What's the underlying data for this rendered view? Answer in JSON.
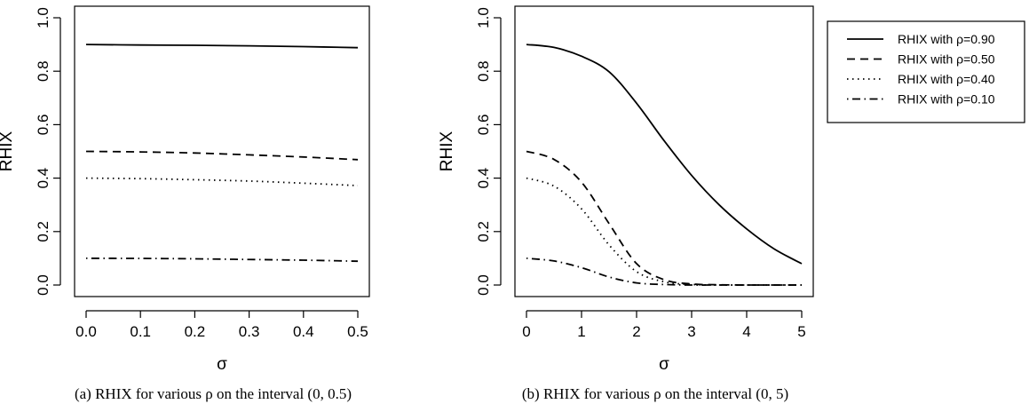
{
  "chart_data": [
    {
      "type": "line",
      "xlabel": "σ",
      "ylabel": "RHIX",
      "xlim": [
        0,
        0.5
      ],
      "ylim": [
        0,
        1
      ],
      "x_ticks": [
        "0.0",
        "0.1",
        "0.2",
        "0.3",
        "0.4",
        "0.5"
      ],
      "y_ticks": [
        "0.0",
        "0.2",
        "0.4",
        "0.6",
        "0.8",
        "1.0"
      ],
      "caption": "(a) RHIX for various ρ on the interval (0, 0.5)",
      "grid": false,
      "series": [
        {
          "name": "RHIX with ρ=0.90",
          "style": "solid",
          "x": [
            0,
            0.1,
            0.2,
            0.3,
            0.4,
            0.5
          ],
          "y": [
            0.9,
            0.898,
            0.897,
            0.895,
            0.892,
            0.888
          ]
        },
        {
          "name": "RHIX with ρ=0.50",
          "style": "dashed",
          "x": [
            0,
            0.1,
            0.2,
            0.3,
            0.4,
            0.5
          ],
          "y": [
            0.5,
            0.498,
            0.494,
            0.487,
            0.479,
            0.469
          ]
        },
        {
          "name": "RHIX with ρ=0.40",
          "style": "dotted",
          "x": [
            0,
            0.1,
            0.2,
            0.3,
            0.4,
            0.5
          ],
          "y": [
            0.4,
            0.398,
            0.394,
            0.389,
            0.381,
            0.372
          ]
        },
        {
          "name": "RHIX with ρ=0.10",
          "style": "dashdot",
          "x": [
            0,
            0.1,
            0.2,
            0.3,
            0.4,
            0.5
          ],
          "y": [
            0.1,
            0.0995,
            0.098,
            0.0955,
            0.093,
            0.089
          ]
        }
      ]
    },
    {
      "type": "line",
      "xlabel": "σ",
      "ylabel": "RHIX",
      "xlim": [
        0,
        5
      ],
      "ylim": [
        0,
        1
      ],
      "x_ticks": [
        "0",
        "1",
        "2",
        "3",
        "4",
        "5"
      ],
      "y_ticks": [
        "0.0",
        "0.2",
        "0.4",
        "0.6",
        "0.8",
        "1.0"
      ],
      "caption": "(b) RHIX for various ρ on the interval (0, 5)",
      "grid": false,
      "legend_position": "outside-right",
      "series": [
        {
          "name": "RHIX with ρ=0.90",
          "style": "solid",
          "x": [
            0,
            0.5,
            1.0,
            1.5,
            2.0,
            2.5,
            3.0,
            3.5,
            4.0,
            4.5,
            5.0
          ],
          "y": [
            0.9,
            0.889,
            0.856,
            0.798,
            0.68,
            0.54,
            0.41,
            0.3,
            0.21,
            0.135,
            0.08
          ]
        },
        {
          "name": "RHIX with ρ=0.50",
          "style": "dashed",
          "x": [
            0,
            0.5,
            1.0,
            1.5,
            2.0,
            2.5,
            3.0,
            3.5,
            4.0,
            4.5,
            5.0
          ],
          "y": [
            0.5,
            0.47,
            0.385,
            0.23,
            0.08,
            0.02,
            0.004,
            0.001,
            0,
            0,
            0
          ]
        },
        {
          "name": "RHIX with ρ=0.40",
          "style": "dotted",
          "x": [
            0,
            0.5,
            1.0,
            1.5,
            2.0,
            2.5,
            3.0,
            3.5,
            4.0,
            4.5,
            5.0
          ],
          "y": [
            0.4,
            0.37,
            0.285,
            0.15,
            0.05,
            0.012,
            0.002,
            0,
            0,
            0,
            0
          ]
        },
        {
          "name": "RHIX with ρ=0.10",
          "style": "dashdot",
          "x": [
            0,
            0.5,
            1.0,
            1.5,
            2.0,
            2.5,
            3.0,
            3.5,
            4.0,
            4.5,
            5.0
          ],
          "y": [
            0.1,
            0.09,
            0.065,
            0.03,
            0.008,
            0.002,
            0,
            0,
            0,
            0,
            0
          ]
        }
      ]
    }
  ],
  "legend": {
    "entries": [
      "RHIX with ρ=0.90",
      "RHIX with ρ=0.50",
      "RHIX with ρ=0.40",
      "RHIX with ρ=0.10"
    ]
  }
}
